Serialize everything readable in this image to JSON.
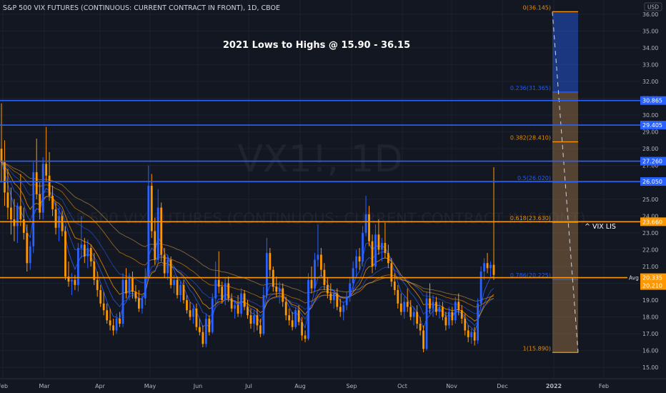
{
  "header": {
    "title": "S&P 500 VIX FUTURES (CONTINUOUS: CURRENT CONTRACT IN FRONT), 1D, CBOE",
    "currency": "USD"
  },
  "watermark": {
    "symbol": "VX1!, 1D",
    "name": "S&P 500 VIX FUTURES (CONTINUOUS: CURRENT CONTRACT IN FRONT)"
  },
  "annotation": "2021 Lows to Highs @ 15.90 - 36.15",
  "vix_note": "^ VIX LIS",
  "avg_label": "Avg",
  "colors": {
    "background": "#131722",
    "grid": "#1e222d",
    "up": "#2962ff",
    "down": "#ff9800",
    "blue_line": "#2962ff",
    "orange_line": "#ff9800",
    "axis_text": "#b2b5be"
  },
  "chart_data": {
    "type": "candlestick",
    "ylim": [
      14.5,
      36.5
    ],
    "y_ticks": [
      "15.000",
      "16.000",
      "17.000",
      "18.000",
      "19.000",
      "20.000",
      "21.000",
      "22.000",
      "23.000",
      "24.000",
      "25.000",
      "26.000",
      "27.000",
      "28.000",
      "29.000",
      "30.000",
      "31.000",
      "32.000",
      "33.000",
      "34.000",
      "35.000",
      "36.000"
    ],
    "x_ticks": [
      "Feb",
      "Mar",
      "Apr",
      "May",
      "Jun",
      "Jul",
      "Aug",
      "Sep",
      "Oct",
      "Nov",
      "Dec",
      "2022",
      "Feb"
    ],
    "horizontal_levels": [
      {
        "value": 30.865,
        "label": "30.865",
        "color": "#2962ff"
      },
      {
        "value": 29.405,
        "label": "29.405",
        "color": "#2962ff"
      },
      {
        "value": 27.26,
        "label": "27.260",
        "color": "#2962ff"
      },
      {
        "value": 26.05,
        "label": "26.050",
        "color": "#2962ff"
      },
      {
        "value": 23.66,
        "label": "23.660",
        "color": "#ff9800"
      },
      {
        "value": 20.335,
        "label": "20.335",
        "color": "#ff9800"
      }
    ],
    "last_price": {
      "value": 20.21,
      "label": "20.210"
    },
    "fib_levels": [
      {
        "ratio": "0",
        "value": 36.145,
        "label": "0(36.145)",
        "color": "#ff9800"
      },
      {
        "ratio": "0.236",
        "value": 31.365,
        "label": "0.236(31.365)",
        "color": "#2962ff"
      },
      {
        "ratio": "0.382",
        "value": 28.41,
        "label": "0.382(28.410)",
        "color": "#ff9800"
      },
      {
        "ratio": "0.5",
        "value": 26.02,
        "label": "0.5(26.020)",
        "color": "#2962ff"
      },
      {
        "ratio": "0.618",
        "value": 23.63,
        "label": "0.618(23.630)",
        "color": "#ff9800"
      },
      {
        "ratio": "0.786",
        "value": 20.225,
        "label": "0.786(20.225)",
        "color": "#2962ff"
      },
      {
        "ratio": "1",
        "value": 15.89,
        "label": "1(15.890)",
        "color": "#ff9800"
      }
    ],
    "candles": [
      {
        "o": 28.0,
        "h": 30.7,
        "l": 26.0,
        "c": 27.2
      },
      {
        "o": 27.2,
        "h": 28.5,
        "l": 24.6,
        "c": 25.4
      },
      {
        "o": 25.4,
        "h": 26.8,
        "l": 23.8,
        "c": 24.5
      },
      {
        "o": 24.5,
        "h": 25.7,
        "l": 22.9,
        "c": 23.8
      },
      {
        "o": 23.8,
        "h": 25.0,
        "l": 22.5,
        "c": 23.4
      },
      {
        "o": 23.4,
        "h": 24.8,
        "l": 22.4,
        "c": 24.6
      },
      {
        "o": 24.6,
        "h": 26.5,
        "l": 23.4,
        "c": 23.8
      },
      {
        "o": 23.8,
        "h": 24.5,
        "l": 22.6,
        "c": 23.0
      },
      {
        "o": 23.0,
        "h": 23.5,
        "l": 20.7,
        "c": 21.2
      },
      {
        "o": 21.2,
        "h": 22.5,
        "l": 20.8,
        "c": 22.2
      },
      {
        "o": 22.2,
        "h": 27.2,
        "l": 21.8,
        "c": 26.6
      },
      {
        "o": 26.6,
        "h": 28.6,
        "l": 25.0,
        "c": 25.3
      },
      {
        "o": 25.3,
        "h": 26.0,
        "l": 23.8,
        "c": 24.2
      },
      {
        "o": 24.2,
        "h": 27.5,
        "l": 23.8,
        "c": 27.1
      },
      {
        "o": 27.1,
        "h": 29.3,
        "l": 26.0,
        "c": 26.4
      },
      {
        "o": 26.4,
        "h": 27.8,
        "l": 24.9,
        "c": 25.2
      },
      {
        "o": 25.2,
        "h": 25.8,
        "l": 24.0,
        "c": 24.4
      },
      {
        "o": 24.4,
        "h": 24.8,
        "l": 22.9,
        "c": 23.3
      },
      {
        "o": 23.3,
        "h": 24.5,
        "l": 22.5,
        "c": 24.0
      },
      {
        "o": 24.0,
        "h": 24.3,
        "l": 22.8,
        "c": 23.1
      },
      {
        "o": 23.1,
        "h": 23.4,
        "l": 20.2,
        "c": 20.4
      },
      {
        "o": 20.4,
        "h": 21.3,
        "l": 19.8,
        "c": 20.1
      },
      {
        "o": 20.1,
        "h": 20.6,
        "l": 19.3,
        "c": 20.2
      },
      {
        "o": 20.2,
        "h": 20.5,
        "l": 19.6,
        "c": 19.9
      },
      {
        "o": 19.9,
        "h": 22.4,
        "l": 19.5,
        "c": 22.1
      },
      {
        "o": 22.1,
        "h": 24.0,
        "l": 21.5,
        "c": 22.3
      },
      {
        "o": 22.3,
        "h": 22.7,
        "l": 21.2,
        "c": 21.6
      },
      {
        "o": 21.6,
        "h": 22.6,
        "l": 20.9,
        "c": 22.1
      },
      {
        "o": 22.1,
        "h": 22.3,
        "l": 21.0,
        "c": 21.3
      },
      {
        "o": 21.3,
        "h": 21.8,
        "l": 19.9,
        "c": 20.2
      },
      {
        "o": 20.2,
        "h": 20.7,
        "l": 19.2,
        "c": 19.6
      },
      {
        "o": 19.6,
        "h": 19.9,
        "l": 18.6,
        "c": 18.8
      },
      {
        "o": 18.8,
        "h": 19.5,
        "l": 18.1,
        "c": 18.4
      },
      {
        "o": 18.4,
        "h": 18.8,
        "l": 17.6,
        "c": 17.8
      },
      {
        "o": 17.8,
        "h": 18.5,
        "l": 17.2,
        "c": 17.5
      },
      {
        "o": 17.5,
        "h": 17.9,
        "l": 16.9,
        "c": 17.2
      },
      {
        "o": 17.2,
        "h": 18.2,
        "l": 17.0,
        "c": 17.9
      },
      {
        "o": 17.9,
        "h": 18.3,
        "l": 17.4,
        "c": 17.6
      },
      {
        "o": 17.6,
        "h": 20.6,
        "l": 17.4,
        "c": 20.2
      },
      {
        "o": 20.2,
        "h": 20.9,
        "l": 19.1,
        "c": 19.4
      },
      {
        "o": 19.4,
        "h": 20.6,
        "l": 19.0,
        "c": 20.3
      },
      {
        "o": 20.3,
        "h": 20.7,
        "l": 19.1,
        "c": 19.5
      },
      {
        "o": 19.5,
        "h": 19.9,
        "l": 18.9,
        "c": 19.1
      },
      {
        "o": 19.1,
        "h": 19.6,
        "l": 18.3,
        "c": 18.5
      },
      {
        "o": 18.5,
        "h": 19.3,
        "l": 18.2,
        "c": 19.1
      },
      {
        "o": 19.1,
        "h": 20.9,
        "l": 18.7,
        "c": 20.4
      },
      {
        "o": 20.4,
        "h": 27.0,
        "l": 20.3,
        "c": 25.8
      },
      {
        "o": 25.8,
        "h": 26.5,
        "l": 22.7,
        "c": 23.1
      },
      {
        "o": 23.1,
        "h": 23.9,
        "l": 21.1,
        "c": 21.4
      },
      {
        "o": 21.4,
        "h": 25.6,
        "l": 21.2,
        "c": 24.5
      },
      {
        "o": 24.5,
        "h": 24.8,
        "l": 21.3,
        "c": 21.7
      },
      {
        "o": 21.7,
        "h": 22.1,
        "l": 20.3,
        "c": 20.6
      },
      {
        "o": 20.6,
        "h": 21.7,
        "l": 20.2,
        "c": 21.4
      },
      {
        "o": 21.4,
        "h": 21.6,
        "l": 19.7,
        "c": 19.9
      },
      {
        "o": 19.9,
        "h": 20.5,
        "l": 19.4,
        "c": 20.2
      },
      {
        "o": 20.2,
        "h": 20.4,
        "l": 19.1,
        "c": 19.3
      },
      {
        "o": 19.3,
        "h": 20.1,
        "l": 18.9,
        "c": 19.9
      },
      {
        "o": 19.9,
        "h": 20.2,
        "l": 18.8,
        "c": 19.0
      },
      {
        "o": 19.0,
        "h": 19.3,
        "l": 18.2,
        "c": 18.4
      },
      {
        "o": 18.4,
        "h": 18.9,
        "l": 17.8,
        "c": 18.0
      },
      {
        "o": 18.0,
        "h": 18.7,
        "l": 17.6,
        "c": 18.5
      },
      {
        "o": 18.5,
        "h": 18.8,
        "l": 17.2,
        "c": 17.4
      },
      {
        "o": 17.4,
        "h": 17.9,
        "l": 16.9,
        "c": 17.1
      },
      {
        "o": 17.1,
        "h": 17.5,
        "l": 16.2,
        "c": 16.4
      },
      {
        "o": 16.4,
        "h": 18.2,
        "l": 16.2,
        "c": 17.9
      },
      {
        "o": 17.9,
        "h": 18.1,
        "l": 16.9,
        "c": 17.1
      },
      {
        "o": 17.1,
        "h": 19.4,
        "l": 17.0,
        "c": 19.1
      },
      {
        "o": 19.1,
        "h": 21.3,
        "l": 18.8,
        "c": 20.2
      },
      {
        "o": 20.2,
        "h": 21.9,
        "l": 19.4,
        "c": 19.8
      },
      {
        "o": 19.8,
        "h": 20.1,
        "l": 18.8,
        "c": 19.0
      },
      {
        "o": 19.0,
        "h": 20.3,
        "l": 18.7,
        "c": 20.0
      },
      {
        "o": 20.0,
        "h": 20.4,
        "l": 18.9,
        "c": 19.1
      },
      {
        "o": 19.1,
        "h": 19.4,
        "l": 18.3,
        "c": 18.5
      },
      {
        "o": 18.5,
        "h": 19.0,
        "l": 17.9,
        "c": 18.7
      },
      {
        "o": 18.7,
        "h": 19.3,
        "l": 18.0,
        "c": 18.2
      },
      {
        "o": 18.2,
        "h": 19.7,
        "l": 18.0,
        "c": 19.4
      },
      {
        "o": 19.4,
        "h": 19.6,
        "l": 18.4,
        "c": 18.6
      },
      {
        "o": 18.6,
        "h": 19.0,
        "l": 17.9,
        "c": 18.1
      },
      {
        "o": 18.1,
        "h": 18.5,
        "l": 17.3,
        "c": 17.6
      },
      {
        "o": 17.6,
        "h": 18.4,
        "l": 17.1,
        "c": 18.1
      },
      {
        "o": 18.1,
        "h": 18.5,
        "l": 17.2,
        "c": 17.5
      },
      {
        "o": 17.5,
        "h": 17.9,
        "l": 16.8,
        "c": 17.0
      },
      {
        "o": 17.0,
        "h": 19.8,
        "l": 16.9,
        "c": 19.3
      },
      {
        "o": 19.3,
        "h": 22.7,
        "l": 19.1,
        "c": 21.8
      },
      {
        "o": 21.8,
        "h": 22.1,
        "l": 20.4,
        "c": 20.8
      },
      {
        "o": 20.8,
        "h": 21.0,
        "l": 19.5,
        "c": 19.8
      },
      {
        "o": 19.8,
        "h": 20.4,
        "l": 19.2,
        "c": 19.5
      },
      {
        "o": 19.5,
        "h": 20.1,
        "l": 18.8,
        "c": 19.7
      },
      {
        "o": 19.7,
        "h": 20.0,
        "l": 18.6,
        "c": 18.9
      },
      {
        "o": 18.9,
        "h": 19.2,
        "l": 17.8,
        "c": 18.1
      },
      {
        "o": 18.1,
        "h": 18.5,
        "l": 17.5,
        "c": 17.8
      },
      {
        "o": 17.8,
        "h": 18.3,
        "l": 17.2,
        "c": 17.4
      },
      {
        "o": 17.4,
        "h": 18.6,
        "l": 17.3,
        "c": 18.4
      },
      {
        "o": 18.4,
        "h": 18.7,
        "l": 17.5,
        "c": 17.7
      },
      {
        "o": 17.7,
        "h": 18.0,
        "l": 16.6,
        "c": 16.9
      },
      {
        "o": 16.9,
        "h": 17.2,
        "l": 16.5,
        "c": 16.7
      },
      {
        "o": 16.7,
        "h": 20.6,
        "l": 16.6,
        "c": 20.2
      },
      {
        "o": 20.2,
        "h": 21.0,
        "l": 19.4,
        "c": 19.7
      },
      {
        "o": 19.7,
        "h": 21.8,
        "l": 19.5,
        "c": 21.4
      },
      {
        "o": 21.4,
        "h": 23.5,
        "l": 21.0,
        "c": 21.7
      },
      {
        "o": 21.7,
        "h": 22.1,
        "l": 20.4,
        "c": 20.8
      },
      {
        "o": 20.8,
        "h": 21.2,
        "l": 19.6,
        "c": 19.9
      },
      {
        "o": 19.9,
        "h": 20.3,
        "l": 19.1,
        "c": 19.4
      },
      {
        "o": 19.4,
        "h": 20.0,
        "l": 18.8,
        "c": 19.0
      },
      {
        "o": 19.0,
        "h": 19.6,
        "l": 18.5,
        "c": 19.4
      },
      {
        "o": 19.4,
        "h": 19.7,
        "l": 18.4,
        "c": 18.6
      },
      {
        "o": 18.6,
        "h": 19.1,
        "l": 18.0,
        "c": 18.3
      },
      {
        "o": 18.3,
        "h": 18.9,
        "l": 17.8,
        "c": 18.7
      },
      {
        "o": 18.7,
        "h": 19.5,
        "l": 18.4,
        "c": 19.2
      },
      {
        "o": 19.2,
        "h": 20.3,
        "l": 18.9,
        "c": 20.0
      },
      {
        "o": 20.0,
        "h": 21.3,
        "l": 19.6,
        "c": 20.9
      },
      {
        "o": 20.9,
        "h": 22.0,
        "l": 20.3,
        "c": 21.6
      },
      {
        "o": 21.6,
        "h": 22.1,
        "l": 20.8,
        "c": 21.3
      },
      {
        "o": 21.3,
        "h": 23.4,
        "l": 21.0,
        "c": 23.0
      },
      {
        "o": 23.0,
        "h": 25.2,
        "l": 22.8,
        "c": 24.1
      },
      {
        "o": 24.1,
        "h": 24.6,
        "l": 22.2,
        "c": 22.5
      },
      {
        "o": 22.5,
        "h": 22.9,
        "l": 20.6,
        "c": 21.0
      },
      {
        "o": 21.0,
        "h": 23.5,
        "l": 20.8,
        "c": 22.9
      },
      {
        "o": 22.9,
        "h": 23.8,
        "l": 21.7,
        "c": 22.0
      },
      {
        "o": 22.0,
        "h": 22.7,
        "l": 21.3,
        "c": 22.4
      },
      {
        "o": 22.4,
        "h": 23.6,
        "l": 21.5,
        "c": 21.8
      },
      {
        "o": 21.8,
        "h": 22.3,
        "l": 20.9,
        "c": 21.2
      },
      {
        "o": 21.2,
        "h": 21.5,
        "l": 19.8,
        "c": 20.1
      },
      {
        "o": 20.1,
        "h": 20.6,
        "l": 19.3,
        "c": 19.6
      },
      {
        "o": 19.6,
        "h": 19.9,
        "l": 18.5,
        "c": 18.8
      },
      {
        "o": 18.8,
        "h": 19.4,
        "l": 18.1,
        "c": 18.3
      },
      {
        "o": 18.3,
        "h": 19.2,
        "l": 17.9,
        "c": 18.9
      },
      {
        "o": 18.9,
        "h": 19.7,
        "l": 18.3,
        "c": 18.6
      },
      {
        "o": 18.6,
        "h": 19.0,
        "l": 17.8,
        "c": 18.0
      },
      {
        "o": 18.0,
        "h": 18.6,
        "l": 17.5,
        "c": 18.3
      },
      {
        "o": 18.3,
        "h": 18.7,
        "l": 17.3,
        "c": 17.6
      },
      {
        "o": 17.6,
        "h": 18.0,
        "l": 16.9,
        "c": 17.2
      },
      {
        "o": 17.2,
        "h": 17.5,
        "l": 15.9,
        "c": 16.1
      },
      {
        "o": 16.1,
        "h": 19.5,
        "l": 16.0,
        "c": 19.1
      },
      {
        "o": 19.1,
        "h": 20.0,
        "l": 18.2,
        "c": 18.5
      },
      {
        "o": 18.5,
        "h": 19.3,
        "l": 18.0,
        "c": 18.9
      },
      {
        "o": 18.9,
        "h": 19.2,
        "l": 18.1,
        "c": 18.3
      },
      {
        "o": 18.3,
        "h": 18.9,
        "l": 17.9,
        "c": 18.6
      },
      {
        "o": 18.6,
        "h": 18.9,
        "l": 17.8,
        "c": 18.0
      },
      {
        "o": 18.0,
        "h": 18.3,
        "l": 17.2,
        "c": 17.5
      },
      {
        "o": 17.5,
        "h": 18.6,
        "l": 17.3,
        "c": 18.3
      },
      {
        "o": 18.3,
        "h": 18.6,
        "l": 17.5,
        "c": 17.8
      },
      {
        "o": 17.8,
        "h": 19.2,
        "l": 17.6,
        "c": 18.9
      },
      {
        "o": 18.9,
        "h": 19.4,
        "l": 18.1,
        "c": 18.4
      },
      {
        "o": 18.4,
        "h": 18.7,
        "l": 17.6,
        "c": 17.9
      },
      {
        "o": 17.9,
        "h": 18.2,
        "l": 16.9,
        "c": 17.2
      },
      {
        "o": 17.2,
        "h": 17.5,
        "l": 16.5,
        "c": 16.8
      },
      {
        "o": 16.8,
        "h": 17.3,
        "l": 16.4,
        "c": 17.1
      },
      {
        "o": 17.1,
        "h": 17.4,
        "l": 16.3,
        "c": 16.6
      },
      {
        "o": 16.6,
        "h": 19.1,
        "l": 16.4,
        "c": 18.8
      },
      {
        "o": 18.8,
        "h": 21.0,
        "l": 18.6,
        "c": 20.7
      },
      {
        "o": 20.7,
        "h": 21.5,
        "l": 20.2,
        "c": 21.2
      },
      {
        "o": 21.2,
        "h": 21.8,
        "l": 20.6,
        "c": 20.9
      },
      {
        "o": 20.9,
        "h": 21.3,
        "l": 20.4,
        "c": 21.1
      },
      {
        "o": 21.1,
        "h": 26.9,
        "l": 20.2,
        "c": 20.5
      }
    ]
  }
}
